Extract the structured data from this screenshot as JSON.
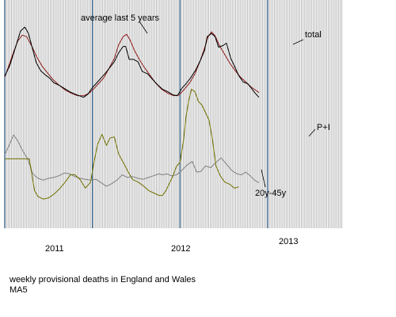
{
  "chart_data": {
    "type": "line",
    "x_domain": [
      2010.0,
      2013.85
    ],
    "year_lines": [
      2010.0,
      2011.0,
      2012.0,
      2013.0
    ],
    "year_labels": [
      {
        "x": 2010.55,
        "label": "2011"
      },
      {
        "x": 2011.55,
        "label": "2012"
      },
      {
        "x": 2012.55,
        "label": "2013"
      }
    ],
    "series": [
      {
        "name": "total",
        "color": "#000000",
        "points": [
          [
            2010.0,
            35
          ],
          [
            2010.06,
            49
          ],
          [
            2010.12,
            70
          ],
          [
            2010.18,
            91
          ],
          [
            2010.23,
            96
          ],
          [
            2010.27,
            88
          ],
          [
            2010.31,
            72
          ],
          [
            2010.36,
            52
          ],
          [
            2010.41,
            42
          ],
          [
            2010.46,
            37
          ],
          [
            2010.51,
            33
          ],
          [
            2010.56,
            27
          ],
          [
            2010.62,
            24
          ],
          [
            2010.68,
            20
          ],
          [
            2010.74,
            16
          ],
          [
            2010.8,
            13
          ],
          [
            2010.85,
            11
          ],
          [
            2010.9,
            9
          ],
          [
            2010.95,
            13
          ],
          [
            2011.0,
            21
          ],
          [
            2011.05,
            27
          ],
          [
            2011.1,
            33
          ],
          [
            2011.15,
            39
          ],
          [
            2011.2,
            46
          ],
          [
            2011.25,
            53
          ],
          [
            2011.3,
            64
          ],
          [
            2011.35,
            72
          ],
          [
            2011.38,
            72
          ],
          [
            2011.42,
            56
          ],
          [
            2011.47,
            56
          ],
          [
            2011.52,
            53
          ],
          [
            2011.57,
            41
          ],
          [
            2011.63,
            38
          ],
          [
            2011.68,
            32
          ],
          [
            2011.74,
            25
          ],
          [
            2011.8,
            19
          ],
          [
            2011.86,
            16
          ],
          [
            2011.92,
            12
          ],
          [
            2011.97,
            11
          ],
          [
            2012.02,
            20
          ],
          [
            2012.07,
            26
          ],
          [
            2012.12,
            33
          ],
          [
            2012.18,
            43
          ],
          [
            2012.23,
            54
          ],
          [
            2012.28,
            67
          ],
          [
            2012.31,
            84
          ],
          [
            2012.36,
            88
          ],
          [
            2012.4,
            84
          ],
          [
            2012.44,
            71
          ],
          [
            2012.49,
            73
          ],
          [
            2012.53,
            76
          ],
          [
            2012.58,
            57
          ],
          [
            2012.62,
            48
          ],
          [
            2012.67,
            36
          ],
          [
            2012.72,
            28
          ],
          [
            2012.77,
            26
          ],
          [
            2012.81,
            21
          ],
          [
            2012.85,
            15
          ],
          [
            2012.9,
            9
          ]
        ]
      },
      {
        "name": "average last 5 years",
        "color": "#8b1a1a",
        "points": [
          [
            2010.0,
            34
          ],
          [
            2010.05,
            49
          ],
          [
            2010.1,
            65
          ],
          [
            2010.15,
            79
          ],
          [
            2010.2,
            86
          ],
          [
            2010.25,
            84
          ],
          [
            2010.31,
            72
          ],
          [
            2010.37,
            58
          ],
          [
            2010.43,
            47
          ],
          [
            2010.49,
            39
          ],
          [
            2010.55,
            31
          ],
          [
            2010.62,
            24
          ],
          [
            2010.69,
            18
          ],
          [
            2010.76,
            14
          ],
          [
            2010.83,
            11
          ],
          [
            2010.9,
            11
          ],
          [
            2010.96,
            14
          ],
          [
            2011.02,
            20
          ],
          [
            2011.07,
            26
          ],
          [
            2011.13,
            33
          ],
          [
            2011.19,
            45
          ],
          [
            2011.25,
            57
          ],
          [
            2011.3,
            74
          ],
          [
            2011.35,
            84
          ],
          [
            2011.39,
            87
          ],
          [
            2011.43,
            80
          ],
          [
            2011.48,
            67
          ],
          [
            2011.54,
            55
          ],
          [
            2011.6,
            45
          ],
          [
            2011.66,
            36
          ],
          [
            2011.72,
            27
          ],
          [
            2011.79,
            19
          ],
          [
            2011.86,
            14
          ],
          [
            2011.93,
            11
          ],
          [
            2011.99,
            12
          ],
          [
            2012.05,
            19
          ],
          [
            2012.11,
            27
          ],
          [
            2012.17,
            38
          ],
          [
            2012.23,
            54
          ],
          [
            2012.28,
            70
          ],
          [
            2012.32,
            84
          ],
          [
            2012.36,
            90
          ],
          [
            2012.4,
            85
          ],
          [
            2012.45,
            73
          ],
          [
            2012.51,
            62
          ],
          [
            2012.57,
            51
          ],
          [
            2012.63,
            42
          ],
          [
            2012.69,
            34
          ],
          [
            2012.75,
            28
          ],
          [
            2012.81,
            22
          ],
          [
            2012.86,
            18
          ],
          [
            2012.9,
            15
          ]
        ]
      },
      {
        "name": "P+I",
        "color": "#707000",
        "points": [
          [
            2010.0,
            40
          ],
          [
            2010.28,
            40
          ],
          [
            2010.31,
            27
          ],
          [
            2010.34,
            14
          ],
          [
            2010.38,
            9
          ],
          [
            2010.44,
            7
          ],
          [
            2010.5,
            8
          ],
          [
            2010.56,
            11
          ],
          [
            2010.62,
            15
          ],
          [
            2010.69,
            21
          ],
          [
            2010.75,
            27
          ],
          [
            2010.8,
            27
          ],
          [
            2010.86,
            23
          ],
          [
            2010.92,
            16
          ],
          [
            2010.98,
            21
          ],
          [
            2011.02,
            38
          ],
          [
            2011.06,
            52
          ],
          [
            2011.11,
            60
          ],
          [
            2011.16,
            51
          ],
          [
            2011.2,
            57
          ],
          [
            2011.25,
            58
          ],
          [
            2011.3,
            44
          ],
          [
            2011.36,
            36
          ],
          [
            2011.41,
            29
          ],
          [
            2011.46,
            23
          ],
          [
            2011.52,
            21
          ],
          [
            2011.58,
            18
          ],
          [
            2011.64,
            14
          ],
          [
            2011.7,
            12
          ],
          [
            2011.76,
            10
          ],
          [
            2011.8,
            10
          ],
          [
            2011.84,
            14
          ],
          [
            2011.88,
            20
          ],
          [
            2011.92,
            26
          ],
          [
            2011.96,
            34
          ],
          [
            2012.0,
            37
          ],
          [
            2012.04,
            55
          ],
          [
            2012.07,
            75
          ],
          [
            2012.1,
            88
          ],
          [
            2012.13,
            97
          ],
          [
            2012.17,
            95
          ],
          [
            2012.21,
            87
          ],
          [
            2012.25,
            84
          ],
          [
            2012.29,
            78
          ],
          [
            2012.33,
            72
          ],
          [
            2012.37,
            56
          ],
          [
            2012.41,
            34
          ],
          [
            2012.46,
            26
          ],
          [
            2012.51,
            21
          ],
          [
            2012.57,
            19
          ],
          [
            2012.62,
            16
          ],
          [
            2012.67,
            17
          ]
        ]
      },
      {
        "name": "20y-45y",
        "color": "#808080",
        "points": [
          [
            2010.0,
            60
          ],
          [
            2010.05,
            70
          ],
          [
            2010.1,
            82
          ],
          [
            2010.15,
            75
          ],
          [
            2010.2,
            65
          ],
          [
            2010.26,
            55
          ],
          [
            2010.32,
            38
          ],
          [
            2010.38,
            33
          ],
          [
            2010.44,
            31
          ],
          [
            2010.5,
            33
          ],
          [
            2010.56,
            34
          ],
          [
            2010.62,
            36
          ],
          [
            2010.68,
            39
          ],
          [
            2010.74,
            38
          ],
          [
            2010.8,
            35
          ],
          [
            2010.86,
            33
          ],
          [
            2010.92,
            32
          ],
          [
            2010.98,
            31
          ],
          [
            2011.04,
            32
          ],
          [
            2011.1,
            28
          ],
          [
            2011.16,
            24
          ],
          [
            2011.22,
            27
          ],
          [
            2011.28,
            31
          ],
          [
            2011.34,
            37
          ],
          [
            2011.4,
            34
          ],
          [
            2011.46,
            35
          ],
          [
            2011.52,
            33
          ],
          [
            2011.58,
            32
          ],
          [
            2011.64,
            34
          ],
          [
            2011.7,
            36
          ],
          [
            2011.76,
            38
          ],
          [
            2011.8,
            37
          ],
          [
            2011.85,
            38
          ],
          [
            2011.9,
            36
          ],
          [
            2011.96,
            37
          ],
          [
            2012.02,
            42
          ],
          [
            2012.08,
            48
          ],
          [
            2012.14,
            52
          ],
          [
            2012.19,
            40
          ],
          [
            2012.24,
            41
          ],
          [
            2012.29,
            47
          ],
          [
            2012.35,
            45
          ],
          [
            2012.41,
            51
          ],
          [
            2012.47,
            56
          ],
          [
            2012.53,
            49
          ],
          [
            2012.59,
            42
          ],
          [
            2012.65,
            38
          ],
          [
            2012.7,
            37
          ],
          [
            2012.75,
            40
          ],
          [
            2012.8,
            36
          ],
          [
            2012.85,
            31
          ],
          [
            2012.9,
            28
          ]
        ]
      }
    ],
    "annotations": [
      "average last 5 years",
      "total",
      "P+I",
      "20y-45y"
    ]
  },
  "caption": {
    "line1": "weekly provisional deaths in England and Wales",
    "line2": "MA5"
  }
}
